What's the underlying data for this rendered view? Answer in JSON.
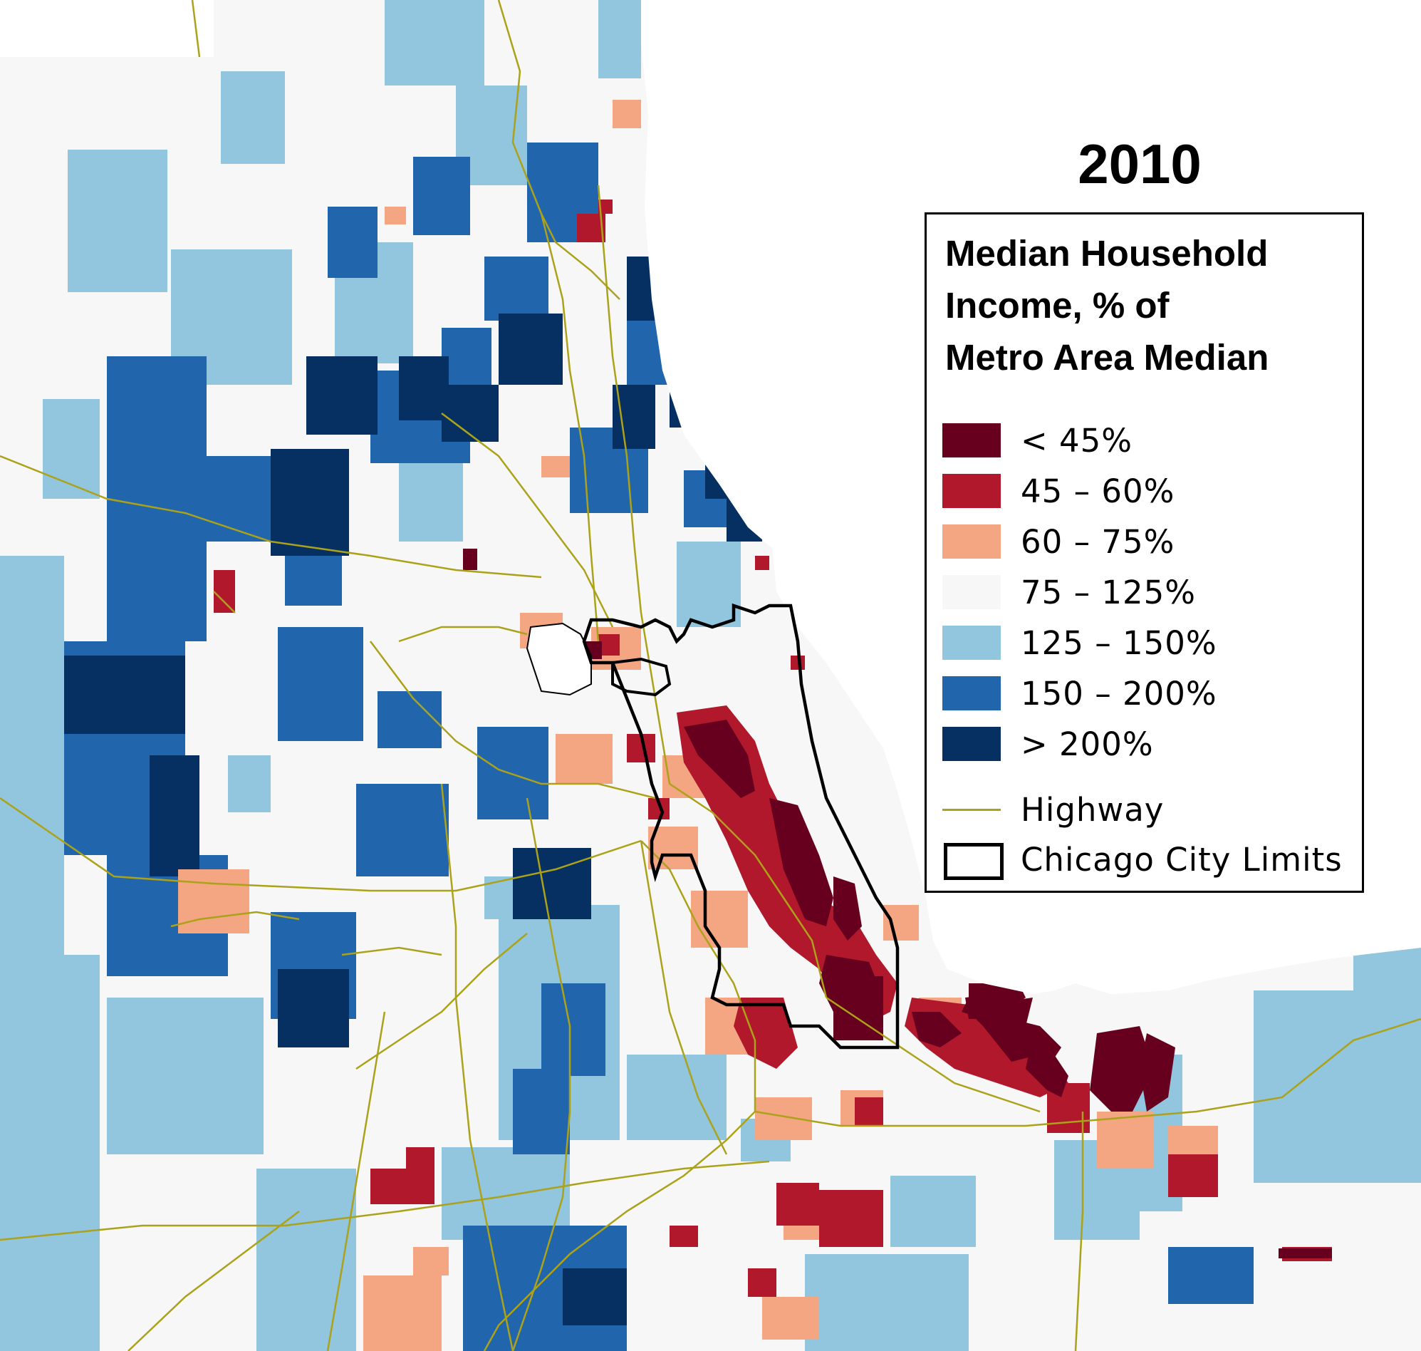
{
  "map": {
    "title": "2010",
    "legend": {
      "title_lines": [
        "Median Household",
        "Income, % of",
        "Metro Area Median"
      ],
      "classes": [
        {
          "label": "< 45%",
          "color": "#67001f"
        },
        {
          "label": "45 – 60%",
          "color": "#b2182b"
        },
        {
          "label": "60 – 75%",
          "color": "#f4a582"
        },
        {
          "label": "75 – 125%",
          "color": "#f7f7f7"
        },
        {
          "label": "125 – 150%",
          "color": "#92c5de"
        },
        {
          "label": "150 – 200%",
          "color": "#2166ac"
        },
        {
          "label": "> 200%",
          "color": "#053061"
        }
      ],
      "highway_label": "Highway",
      "city_limits_label": "Chicago City Limits"
    },
    "colors": {
      "highway": "#aca21a",
      "city_limits": "#000000",
      "lake": "#ffffff"
    }
  }
}
